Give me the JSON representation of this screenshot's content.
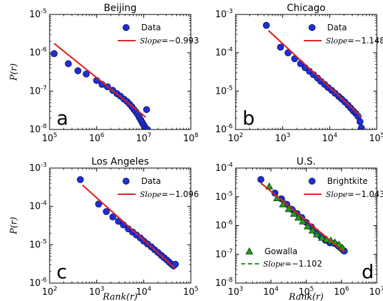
{
  "chart_data": [
    {
      "type": "scatter",
      "title": "Beijing",
      "panel_label": "a",
      "ylabel": "P(r)",
      "xlabel": "",
      "xscale": "log",
      "yscale": "log",
      "xlim": [
        100000,
        100000000
      ],
      "ylim": [
        1e-08,
        1e-05
      ],
      "xtick_exponents": [
        5,
        6,
        7,
        8
      ],
      "ytick_exponents": [
        -8,
        -7,
        -6,
        -5
      ],
      "legend": {
        "placement": "top-right",
        "data_label": "Data",
        "fit_label": "Slope = −0.993"
      },
      "series": [
        {
          "kind": "marker",
          "marker": "circle",
          "color": "#1f2fd6",
          "x": [
            125000,
            250000,
            400000,
            600000,
            1000000,
            1300000,
            1700000,
            2200000,
            2700000,
            3200000,
            3800000,
            4400000,
            5000000,
            5600000,
            6200000,
            6800000,
            7400000,
            8000000,
            8600000,
            9200000,
            9800000,
            10400000,
            11000000,
            11500000,
            12000000
          ],
          "y": [
            9.5e-07,
            5.2e-07,
            3.4e-07,
            2.8e-07,
            1.9e-07,
            1.5e-07,
            1.3e-07,
            1.05e-07,
            8.6e-08,
            7.4e-08,
            6.2e-08,
            5.4e-08,
            4.6e-08,
            3.9e-08,
            3.3e-08,
            2.9e-08,
            2.5e-08,
            2.1e-08,
            1.8e-08,
            1.55e-08,
            1.35e-08,
            1.2e-08,
            1.05e-08,
            3.3e-08,
            1e-08
          ]
        },
        {
          "kind": "fit",
          "color": "#e0211e",
          "slope": -0.993,
          "x": [
            125000,
            11000000
          ],
          "y": [
            1.75e-06,
            2.1e-08
          ]
        }
      ]
    },
    {
      "type": "scatter",
      "title": "Chicago",
      "panel_label": "b",
      "ylabel": "",
      "xlabel": "",
      "xscale": "log",
      "yscale": "log",
      "xlim": [
        100,
        100000
      ],
      "ylim": [
        1e-06,
        0.001
      ],
      "xtick_exponents": [
        2,
        3,
        4,
        5
      ],
      "ytick_exponents": [
        -6,
        -5,
        -4,
        -3
      ],
      "legend": {
        "placement": "top-right",
        "data_label": "Data",
        "fit_label": "Slope = −1.148"
      },
      "series": [
        {
          "kind": "marker",
          "marker": "circle",
          "color": "#1f2fd6",
          "x": [
            450,
            900,
            1300,
            1800,
            2400,
            3000,
            3700,
            4500,
            5500,
            6500,
            7800,
            9200,
            11000,
            13000,
            15500,
            18000,
            21000,
            24500,
            28000,
            32000,
            36000,
            40000,
            44000,
            47000
          ],
          "y": [
            0.00052,
            0.00014,
            0.0001,
            7e-05,
            5.2e-05,
            4.1e-05,
            3.3e-05,
            2.7e-05,
            2.2e-05,
            1.8e-05,
            1.5e-05,
            1.25e-05,
            1.05e-05,
            8.8e-06,
            7.3e-06,
            6.2e-06,
            5.2e-06,
            4.3e-06,
            3.6e-06,
            3e-06,
            2.6e-06,
            2.2e-06,
            1.6e-06,
            1.1e-06
          ]
        },
        {
          "kind": "fit",
          "color": "#e0211e",
          "slope": -1.148,
          "x": [
            500,
            46000
          ],
          "y": [
            0.00038,
            2.2e-06
          ]
        }
      ]
    },
    {
      "type": "scatter",
      "title": "Los Angeles",
      "panel_label": "c",
      "ylabel": "P(r)",
      "xlabel": "Rank(r)",
      "xscale": "log",
      "yscale": "log",
      "xlim": [
        100,
        100000
      ],
      "ylim": [
        1e-06,
        0.001
      ],
      "xtick_exponents": [
        2,
        3,
        4,
        5
      ],
      "ytick_exponents": [
        -6,
        -5,
        -4,
        -3
      ],
      "legend": {
        "placement": "top-right",
        "data_label": "Data",
        "fit_label": "Slope = −1.096"
      },
      "series": [
        {
          "kind": "marker",
          "marker": "circle",
          "color": "#1f2fd6",
          "x": [
            450,
            1100,
            1600,
            2200,
            2900,
            3700,
            4700,
            5800,
            7000,
            8500,
            10000,
            12000,
            14500,
            17000,
            20000,
            23500,
            27000,
            31000,
            35000,
            39000,
            43000,
            47000
          ],
          "y": [
            0.0005,
            0.000115,
            7.3e-05,
            5.3e-05,
            4.1e-05,
            3.3e-05,
            2.6e-05,
            2.15e-05,
            1.8e-05,
            1.5e-05,
            1.25e-05,
            1.05e-05,
            8.8e-06,
            7.4e-06,
            6.3e-06,
            5.3e-06,
            4.6e-06,
            4e-06,
            3.5e-06,
            3.1e-06,
            2.8e-06,
            3.1e-06
          ]
        },
        {
          "kind": "fit",
          "color": "#e0211e",
          "slope": -1.096,
          "x": [
            500,
            47000
          ],
          "y": [
            0.00036,
            2.4e-06
          ]
        }
      ]
    },
    {
      "type": "scatter",
      "title": "U.S.",
      "panel_label": "d",
      "ylabel": "",
      "xlabel": "Rank(r)",
      "xscale": "log",
      "yscale": "log",
      "xlim": [
        1000,
        10000000
      ],
      "ylim": [
        1e-08,
        0.0001
      ],
      "xtick_exponents": [
        3,
        4,
        5,
        6,
        7
      ],
      "ytick_exponents": [
        -8,
        -7,
        -6,
        -5,
        -4
      ],
      "legend": {
        "placement": "top-right",
        "data_label": "Brightkite",
        "fit_label": "Slope = −1.043"
      },
      "legend2": {
        "placement": "bottom-left",
        "data_label": "Gowalla",
        "fit_label": "Slope = −1.102"
      },
      "series": [
        {
          "kind": "marker",
          "marker": "circle",
          "color": "#1f2fd6",
          "x": [
            5200,
            13000,
            20000,
            28000,
            40000,
            55000,
            75000,
            100000,
            140000,
            190000,
            260000,
            350000,
            470000,
            620000,
            800000,
            1000000,
            1200000
          ],
          "y": [
            4e-05,
            1.35e-05,
            8.5e-06,
            5.5e-06,
            3.6e-06,
            2.6e-06,
            1.9e-06,
            1.3e-06,
            9e-07,
            6e-07,
            4.2e-07,
            3.1e-07,
            2.5e-07,
            2.4e-07,
            2e-07,
            1.6e-07,
            1.3e-07
          ]
        },
        {
          "kind": "fit",
          "color": "#e0211e",
          "slope": -1.043,
          "x": [
            5200,
            1200000
          ],
          "y": [
            3e-05,
            1.2e-07
          ]
        },
        {
          "kind": "marker",
          "marker": "triangle",
          "color": "#1c9e1c",
          "x": [
            9000,
            15000,
            22000,
            32000,
            45000,
            60000,
            80000,
            110000,
            150000,
            200000,
            280000,
            380000,
            500000,
            650000,
            850000,
            1050000
          ],
          "y": [
            2.3e-05,
            9e-06,
            5.5e-06,
            3.8e-06,
            2.6e-06,
            1.9e-06,
            1.4e-06,
            9.5e-07,
            6.8e-07,
            5e-07,
            3.8e-07,
            3.3e-07,
            3e-07,
            2.6e-07,
            2.2e-07,
            1.7e-07
          ]
        },
        {
          "kind": "fit",
          "color": "#1c9e1c",
          "dashed": true,
          "slope": -1.102,
          "x": [
            9000,
            1050000
          ],
          "y": [
            2.3e-05,
            1.1e-07
          ]
        }
      ]
    }
  ]
}
